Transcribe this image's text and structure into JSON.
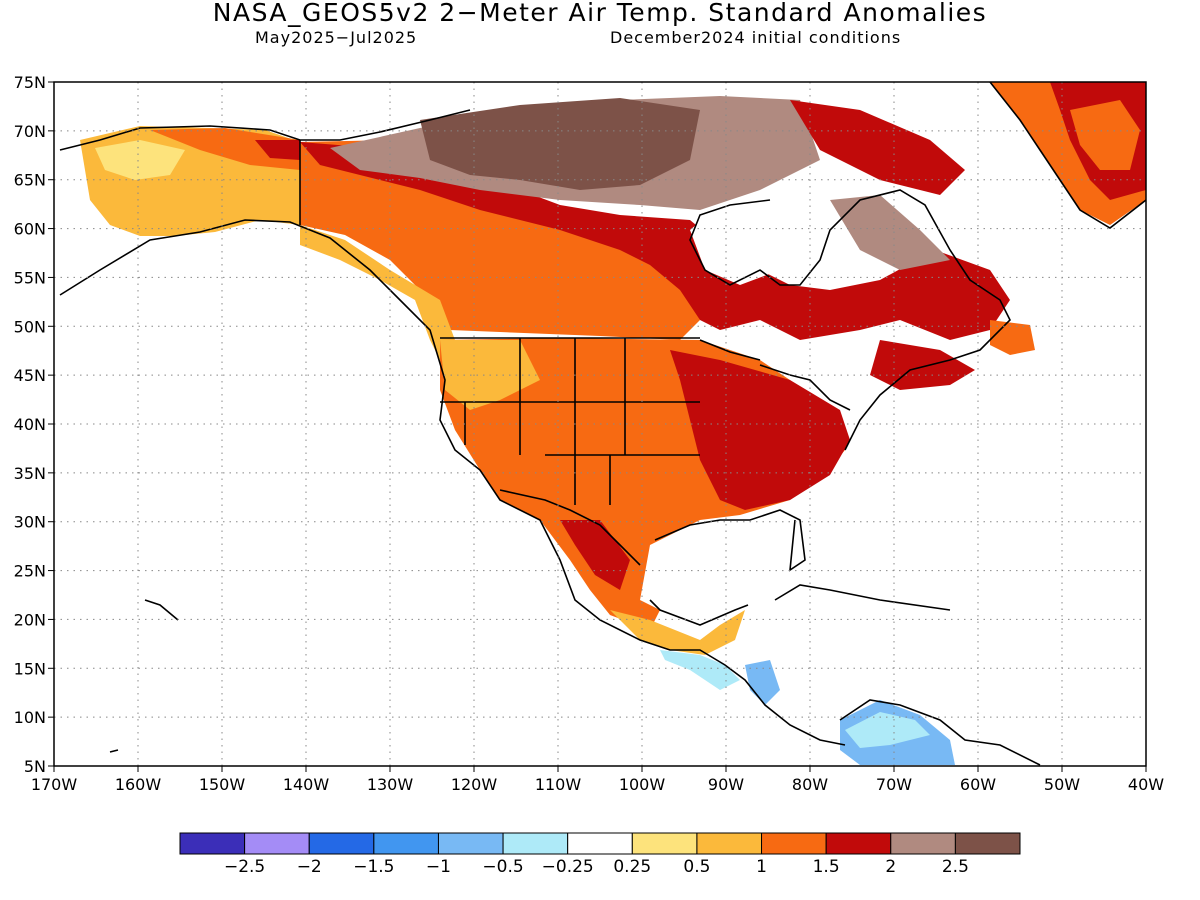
{
  "title": "NASA_GEOS5v2 2−Meter Air Temp. Standard Anomalies",
  "period": "May2025−Jul2025",
  "init": "December2024 initial conditions",
  "lat_labels": [
    "75N",
    "70N",
    "65N",
    "60N",
    "55N",
    "50N",
    "45N",
    "40N",
    "35N",
    "30N",
    "25N",
    "20N",
    "15N",
    "10N",
    "5N"
  ],
  "lon_labels": [
    "170W",
    "160W",
    "150W",
    "140W",
    "130W",
    "120W",
    "110W",
    "100W",
    "90W",
    "80W",
    "70W",
    "60W",
    "50W",
    "40W"
  ],
  "colorbar": {
    "colors": [
      "#3b2eb8",
      "#a48cf6",
      "#2469e6",
      "#4196f0",
      "#78b9f4",
      "#aeeaf8",
      "#ffffff",
      "#fde37c",
      "#fbb93b",
      "#f76a12",
      "#c10a0a",
      "#b08a80",
      "#7d5248"
    ],
    "labels": [
      "−2.5",
      "−2",
      "−1.5",
      "−1",
      "−0.5",
      "−0.25",
      "0.25",
      "0.5",
      "1",
      "1.5",
      "2",
      "2.5"
    ]
  }
}
